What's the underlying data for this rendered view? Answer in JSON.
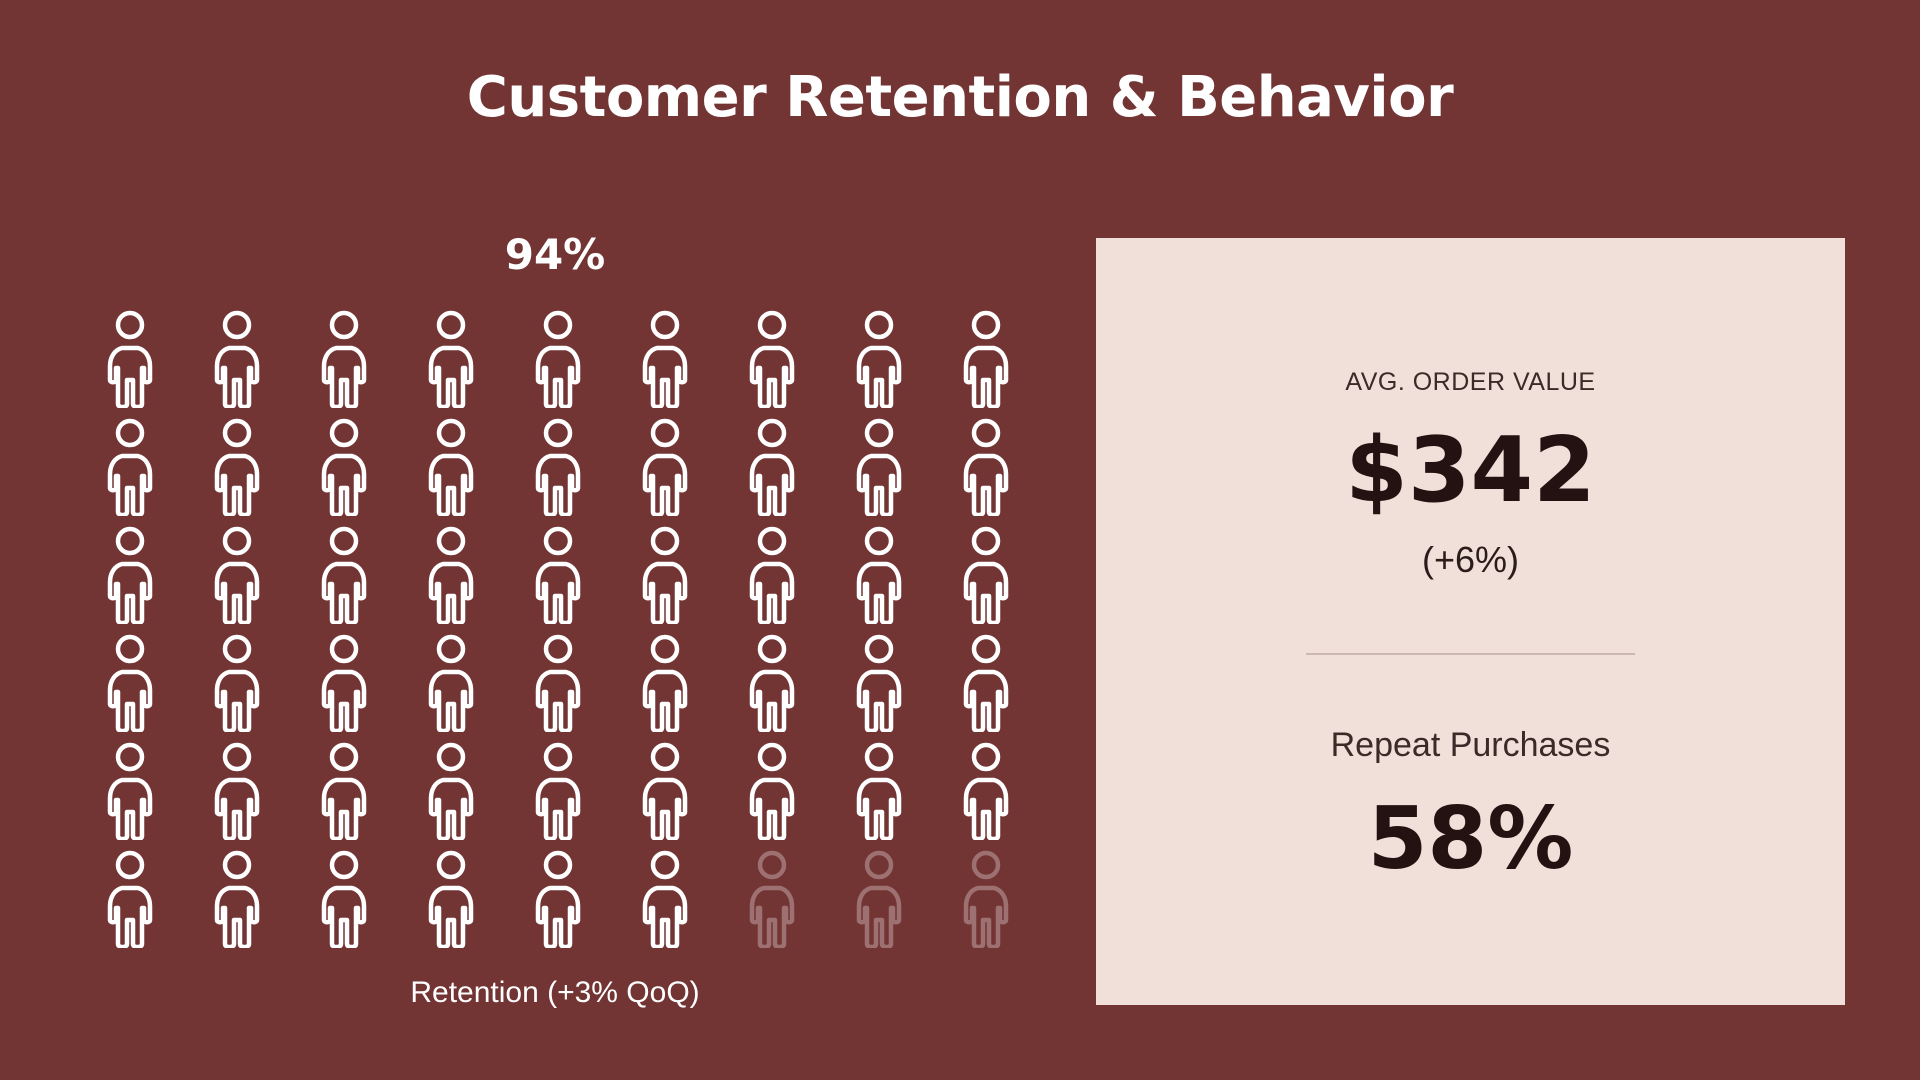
{
  "page": {
    "title": "Customer Retention & Behavior",
    "background_color": "#733434"
  },
  "retention": {
    "percent_label": "94%",
    "caption": "Retention (+3% QoQ)",
    "icon": "person-icon",
    "icon_color": "#ffffff",
    "grid_columns": 9,
    "grid_rows": 6,
    "filled_count": 51,
    "total_count": 54
  },
  "stats_card": {
    "background_color": "#f1e0d9",
    "avg_order_value": {
      "label": "AVG. ORDER VALUE",
      "value": "$342",
      "change": "(+6%)"
    },
    "repeat_purchases": {
      "label": "Repeat Purchases",
      "value": "58%"
    }
  }
}
